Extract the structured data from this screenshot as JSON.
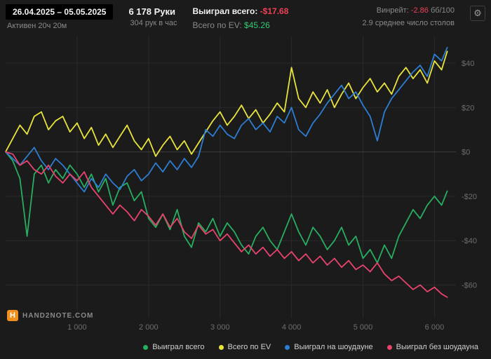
{
  "header": {
    "date_range": "26.04.2025 – 05.05.2025",
    "active_time": "Активен 20ч 20м",
    "hands_total": "6 178 Руки",
    "hands_per_hour": "304 рук в час",
    "won_label": "Выиграл всего:",
    "won_value": "-$17.68",
    "ev_label": "Всего по EV:",
    "ev_value": "$45.26",
    "winrate_label": "Винрейт:",
    "winrate_value": "-2.86",
    "winrate_unit": "бб/100",
    "tables_avg": "2.9 среднее число столов",
    "gear_icon": "⚙"
  },
  "logo": {
    "icon_letter": "H",
    "text": "HAND2NOTE.COM"
  },
  "colors": {
    "background": "#1b1b1b",
    "grid": "#2a2a2a",
    "grid_zero": "#3c3c3c",
    "axis_text": "#6e6e6e",
    "accent_orange": "#ef8f1f",
    "negative_red": "#ef4056",
    "positive_green": "#2ecc71"
  },
  "chart_data": {
    "type": "line",
    "title": "",
    "xlabel": "",
    "ylabel": "",
    "grid": true,
    "legend_position": "bottom",
    "xlim": [
      0,
      6300
    ],
    "ylim": [
      -75,
      52
    ],
    "x_ticks": [
      {
        "value": 1000,
        "label": "1 000"
      },
      {
        "value": 2000,
        "label": "2 000"
      },
      {
        "value": 3000,
        "label": "3 000"
      },
      {
        "value": 4000,
        "label": "4 000"
      },
      {
        "value": 5000,
        "label": "5 000"
      },
      {
        "value": 6000,
        "label": "6 000"
      }
    ],
    "y_ticks": [
      {
        "value": 40,
        "label": "$40"
      },
      {
        "value": 20,
        "label": "$20"
      },
      {
        "value": 0,
        "label": "$0"
      },
      {
        "value": -20,
        "label": "-$20"
      },
      {
        "value": -40,
        "label": "-$40"
      },
      {
        "value": -60,
        "label": "-$60"
      }
    ],
    "x": [
      0,
      100,
      200,
      300,
      400,
      500,
      600,
      700,
      800,
      900,
      1000,
      1100,
      1200,
      1300,
      1400,
      1500,
      1600,
      1700,
      1800,
      1900,
      2000,
      2100,
      2200,
      2300,
      2400,
      2500,
      2600,
      2700,
      2800,
      2900,
      3000,
      3100,
      3200,
      3300,
      3400,
      3500,
      3600,
      3700,
      3800,
      3900,
      4000,
      4100,
      4200,
      4300,
      4400,
      4500,
      4600,
      4700,
      4800,
      4900,
      5000,
      5100,
      5200,
      5300,
      5400,
      5500,
      5600,
      5700,
      5800,
      5900,
      6000,
      6100,
      6178
    ],
    "series": [
      {
        "name": "Выиграл всего",
        "color": "#27ae60",
        "values": [
          0,
          -4,
          -12,
          -38,
          -10,
          -6,
          -14,
          -8,
          -12,
          -6,
          -10,
          -16,
          -10,
          -18,
          -12,
          -24,
          -16,
          -14,
          -22,
          -18,
          -30,
          -34,
          -28,
          -35,
          -26,
          -38,
          -43,
          -32,
          -36,
          -30,
          -38,
          -32,
          -36,
          -42,
          -46,
          -38,
          -34,
          -40,
          -44,
          -36,
          -28,
          -36,
          -42,
          -34,
          -38,
          -44,
          -40,
          -34,
          -42,
          -38,
          -48,
          -44,
          -50,
          -42,
          -48,
          -38,
          -32,
          -26,
          -30,
          -24,
          -20,
          -24,
          -17.68
        ]
      },
      {
        "name": "Всего по EV",
        "color": "#e8e33d",
        "values": [
          0,
          6,
          12,
          8,
          16,
          18,
          10,
          14,
          16,
          9,
          13,
          6,
          11,
          3,
          8,
          2,
          7,
          12,
          5,
          1,
          6,
          -2,
          3,
          7,
          1,
          5,
          -1,
          4,
          9,
          14,
          18,
          12,
          16,
          21,
          15,
          19,
          13,
          17,
          22,
          18,
          38,
          24,
          20,
          27,
          22,
          28,
          20,
          26,
          31,
          24,
          29,
          33,
          27,
          31,
          26,
          34,
          38,
          33,
          37,
          31,
          41,
          37,
          45.26
        ]
      },
      {
        "name": "Выиграл на шоудауне",
        "color": "#2d7dd2",
        "values": [
          0,
          -3,
          -6,
          -2,
          2,
          -4,
          -8,
          -3,
          -6,
          -10,
          -14,
          -18,
          -12,
          -16,
          -10,
          -14,
          -17,
          -11,
          -8,
          -13,
          -10,
          -5,
          -9,
          -4,
          -8,
          -3,
          -7,
          -2,
          10,
          7,
          12,
          8,
          6,
          12,
          15,
          10,
          13,
          9,
          16,
          13,
          20,
          10,
          7,
          13,
          17,
          22,
          26,
          30,
          24,
          27,
          21,
          16,
          5,
          18,
          24,
          28,
          32,
          36,
          39,
          34,
          44,
          41,
          47
        ]
      },
      {
        "name": "Выиграл без шоудауна",
        "color": "#e8436d",
        "values": [
          0,
          -1,
          -6,
          -4,
          -8,
          -10,
          -6,
          -11,
          -14,
          -10,
          -13,
          -9,
          -16,
          -20,
          -24,
          -28,
          -24,
          -27,
          -31,
          -26,
          -29,
          -33,
          -28,
          -34,
          -30,
          -36,
          -39,
          -33,
          -37,
          -35,
          -40,
          -37,
          -41,
          -45,
          -42,
          -46,
          -43,
          -47,
          -44,
          -48,
          -45,
          -49,
          -46,
          -50,
          -47,
          -51,
          -48,
          -52,
          -49,
          -53,
          -51,
          -54,
          -50,
          -55,
          -58,
          -56,
          -59,
          -62,
          -60,
          -63,
          -61,
          -64,
          -65.5
        ]
      }
    ]
  }
}
